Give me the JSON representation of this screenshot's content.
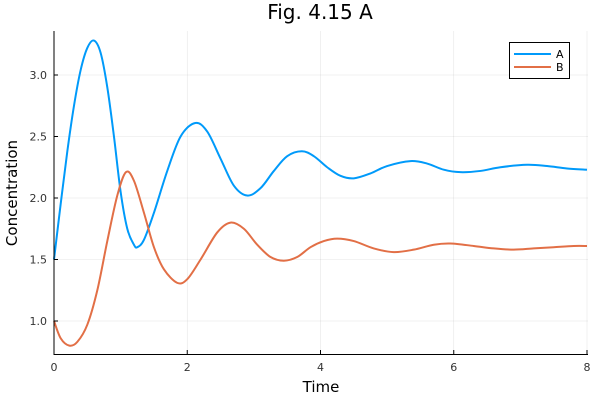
{
  "chart_data": {
    "type": "line",
    "title": "Fig. 4.15 A",
    "xlabel": "Time",
    "ylabel": "Concentration",
    "xlim": [
      0,
      8
    ],
    "ylim": [
      0.73,
      3.36
    ],
    "xticks": [
      0,
      2,
      4,
      6,
      8
    ],
    "xtick_labels": [
      "0",
      "2",
      "4",
      "6",
      "8"
    ],
    "yticks": [
      1.0,
      1.5,
      2.0,
      2.5,
      3.0
    ],
    "ytick_labels": [
      "1.0",
      "1.5",
      "2.0",
      "2.5",
      "3.0"
    ],
    "grid": true,
    "legend_position": "top-right",
    "series": [
      {
        "name": "A",
        "color": "#009AFA",
        "x": [
          0,
          0.1,
          0.2,
          0.3,
          0.4,
          0.5,
          0.6,
          0.7,
          0.8,
          0.9,
          1.0,
          1.1,
          1.2,
          1.25,
          1.35,
          1.5,
          1.7,
          1.9,
          2.12,
          2.3,
          2.5,
          2.7,
          2.9,
          3.1,
          3.3,
          3.5,
          3.72,
          3.9,
          4.1,
          4.3,
          4.5,
          4.75,
          5.0,
          5.35,
          5.6,
          5.85,
          6.1,
          6.4,
          6.7,
          7.1,
          7.4,
          7.7,
          8.0
        ],
        "y": [
          1.5,
          1.95,
          2.38,
          2.75,
          3.04,
          3.22,
          3.28,
          3.18,
          2.9,
          2.5,
          2.05,
          1.75,
          1.62,
          1.6,
          1.66,
          1.88,
          2.22,
          2.5,
          2.61,
          2.54,
          2.32,
          2.1,
          2.02,
          2.08,
          2.22,
          2.34,
          2.38,
          2.34,
          2.25,
          2.18,
          2.16,
          2.2,
          2.26,
          2.3,
          2.28,
          2.23,
          2.21,
          2.22,
          2.25,
          2.27,
          2.26,
          2.24,
          2.23
        ]
      },
      {
        "name": "B",
        "color": "#E26F46",
        "x": [
          0,
          0.1,
          0.23,
          0.35,
          0.5,
          0.65,
          0.8,
          0.95,
          1.08,
          1.2,
          1.35,
          1.5,
          1.65,
          1.85,
          2.0,
          2.2,
          2.45,
          2.65,
          2.85,
          3.05,
          3.25,
          3.45,
          3.65,
          3.85,
          4.05,
          4.25,
          4.5,
          4.8,
          5.1,
          5.4,
          5.7,
          5.95,
          6.3,
          6.6,
          6.9,
          7.2,
          7.5,
          7.8,
          8.0
        ],
        "y": [
          1.0,
          0.86,
          0.8,
          0.83,
          0.97,
          1.25,
          1.65,
          2.02,
          2.21,
          2.14,
          1.88,
          1.6,
          1.42,
          1.31,
          1.34,
          1.5,
          1.72,
          1.8,
          1.75,
          1.62,
          1.52,
          1.49,
          1.52,
          1.6,
          1.65,
          1.67,
          1.65,
          1.59,
          1.56,
          1.58,
          1.62,
          1.63,
          1.61,
          1.59,
          1.58,
          1.59,
          1.6,
          1.61,
          1.61
        ]
      }
    ]
  }
}
